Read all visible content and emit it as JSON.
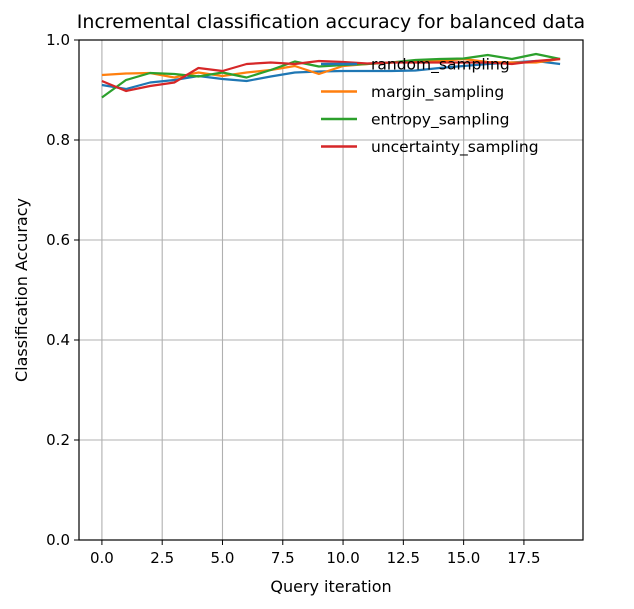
{
  "chart_data": {
    "type": "line",
    "title": "Incremental classification accuracy for balanced data",
    "xlabel": "Query iteration",
    "ylabel": "Classification Accuracy",
    "xlim": [
      -0.95,
      19.95
    ],
    "ylim": [
      0.0,
      1.0
    ],
    "grid": true,
    "legend_position": "top-right",
    "x_ticks": [
      0.0,
      2.5,
      5.0,
      7.5,
      10.0,
      12.5,
      15.0,
      17.5
    ],
    "x_tick_labels": [
      "0.0",
      "2.5",
      "5.0",
      "7.5",
      "10.0",
      "12.5",
      "15.0",
      "17.5"
    ],
    "y_ticks": [
      0.0,
      0.2,
      0.4,
      0.6,
      0.8,
      1.0
    ],
    "y_tick_labels": [
      "0.0",
      "0.2",
      "0.4",
      "0.6",
      "0.8",
      "1.0"
    ],
    "x": [
      0,
      1,
      2,
      3,
      4,
      5,
      6,
      7,
      8,
      9,
      10,
      11,
      12,
      13,
      14,
      15,
      16,
      17,
      18,
      19
    ],
    "series": [
      {
        "name": "random_sampling",
        "color": "#1f77b4",
        "values": [
          0.91,
          0.902,
          0.915,
          0.92,
          0.928,
          0.922,
          0.918,
          0.927,
          0.935,
          0.937,
          0.938,
          0.938,
          0.938,
          0.939,
          0.944,
          0.948,
          0.952,
          0.955,
          0.958,
          0.952
        ]
      },
      {
        "name": "margin_sampling",
        "color": "#ff7f0e",
        "values": [
          0.93,
          0.933,
          0.934,
          0.925,
          0.935,
          0.928,
          0.935,
          0.94,
          0.948,
          0.932,
          0.948,
          0.952,
          0.955,
          0.958,
          0.958,
          0.962,
          0.956,
          0.955,
          0.955,
          0.962
        ]
      },
      {
        "name": "entropy_sampling",
        "color": "#2ca02c",
        "values": [
          0.885,
          0.92,
          0.934,
          0.932,
          0.927,
          0.935,
          0.925,
          0.94,
          0.957,
          0.947,
          0.95,
          0.952,
          0.955,
          0.96,
          0.962,
          0.963,
          0.97,
          0.962,
          0.972,
          0.962
        ]
      },
      {
        "name": "uncertainty_sampling",
        "color": "#d62728",
        "values": [
          0.918,
          0.898,
          0.908,
          0.915,
          0.944,
          0.938,
          0.952,
          0.955,
          0.952,
          0.958,
          0.956,
          0.953,
          0.955,
          0.955,
          0.955,
          0.955,
          0.955,
          0.952,
          0.958,
          0.962
        ]
      }
    ]
  }
}
